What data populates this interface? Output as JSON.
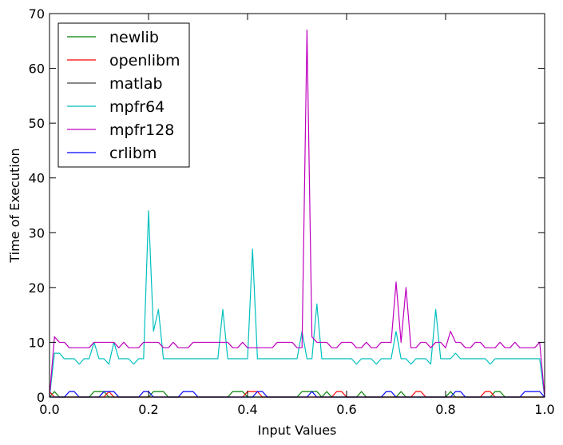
{
  "chart_data": {
    "type": "line",
    "title": "",
    "xlabel": "Input Values",
    "ylabel": "Time of Execution",
    "xlim": [
      0.0,
      1.0
    ],
    "ylim": [
      0,
      70
    ],
    "xticks": [
      0.0,
      0.2,
      0.4,
      0.6,
      0.8,
      1.0
    ],
    "xtick_labels": [
      "0.0",
      "0.2",
      "0.4",
      "0.6",
      "0.8",
      "1.0"
    ],
    "yticks": [
      0,
      10,
      20,
      30,
      40,
      50,
      60,
      70
    ],
    "ytick_labels": [
      "0",
      "10",
      "20",
      "30",
      "40",
      "50",
      "60",
      "70"
    ],
    "grid": false,
    "legend_position": "top-left",
    "x": [
      0.0,
      0.01,
      0.02,
      0.03,
      0.04,
      0.05,
      0.06,
      0.07,
      0.08,
      0.09,
      0.1,
      0.11,
      0.12,
      0.13,
      0.14,
      0.15,
      0.16,
      0.17,
      0.18,
      0.19,
      0.2,
      0.21,
      0.22,
      0.23,
      0.24,
      0.25,
      0.26,
      0.27,
      0.28,
      0.29,
      0.3,
      0.31,
      0.32,
      0.33,
      0.34,
      0.35,
      0.36,
      0.37,
      0.38,
      0.39,
      0.4,
      0.41,
      0.42,
      0.43,
      0.44,
      0.45,
      0.46,
      0.47,
      0.48,
      0.49,
      0.5,
      0.51,
      0.52,
      0.53,
      0.54,
      0.55,
      0.56,
      0.57,
      0.58,
      0.59,
      0.6,
      0.61,
      0.62,
      0.63,
      0.64,
      0.65,
      0.66,
      0.67,
      0.68,
      0.69,
      0.7,
      0.71,
      0.72,
      0.73,
      0.74,
      0.75,
      0.76,
      0.77,
      0.78,
      0.79,
      0.8,
      0.81,
      0.82,
      0.83,
      0.84,
      0.85,
      0.86,
      0.87,
      0.88,
      0.89,
      0.9,
      0.91,
      0.92,
      0.93,
      0.94,
      0.95,
      0.96,
      0.97,
      0.98,
      0.99,
      1.0
    ],
    "series": [
      {
        "name": "newlib",
        "color": "#008000",
        "values": [
          0,
          1,
          0,
          0,
          0,
          0,
          0,
          0,
          0,
          1,
          1,
          1,
          0,
          0,
          0,
          0,
          0,
          0,
          0,
          0,
          0,
          1,
          1,
          1,
          0,
          0,
          0,
          0,
          0,
          0,
          0,
          0,
          0,
          0,
          0,
          0,
          0,
          1,
          1,
          1,
          0,
          0,
          0,
          0,
          0,
          0,
          0,
          0,
          0,
          0,
          0,
          1,
          1,
          1,
          1,
          0,
          1,
          0,
          0,
          0,
          0,
          0,
          0,
          1,
          0,
          0,
          0,
          0,
          0,
          0,
          0,
          1,
          0,
          0,
          0,
          0,
          0,
          0,
          0,
          0,
          0,
          1,
          0,
          0,
          0,
          0,
          0,
          0,
          0,
          0,
          1,
          1,
          0,
          0,
          0,
          0,
          0,
          0,
          0,
          0,
          0
        ]
      },
      {
        "name": "openlibm",
        "color": "#ff0000",
        "values": [
          1,
          0,
          0,
          0,
          0,
          0,
          0,
          0,
          0,
          0,
          0,
          0,
          1,
          0,
          0,
          0,
          0,
          0,
          0,
          0,
          0,
          0,
          0,
          0,
          0,
          0,
          0,
          0,
          0,
          0,
          0,
          0,
          0,
          0,
          0,
          0,
          0,
          0,
          0,
          0,
          1,
          1,
          1,
          0,
          0,
          0,
          0,
          0,
          0,
          0,
          0,
          0,
          0,
          0,
          0,
          0,
          0,
          0,
          1,
          1,
          0,
          0,
          0,
          0,
          0,
          0,
          0,
          0,
          0,
          0,
          0,
          0,
          0,
          0,
          1,
          1,
          0,
          0,
          0,
          0,
          0,
          0,
          0,
          0,
          0,
          0,
          0,
          0,
          1,
          1,
          0,
          0,
          0,
          0,
          0,
          0,
          0,
          0,
          0,
          0,
          0
        ]
      },
      {
        "name": "matlab",
        "color": "#404040",
        "values": [
          0,
          0,
          0,
          0,
          0,
          0,
          0,
          0,
          0,
          0,
          0,
          0,
          0,
          0,
          0,
          0,
          0,
          0,
          0,
          0,
          0,
          0,
          0,
          0,
          0,
          0,
          0,
          0,
          0,
          0,
          0,
          0,
          0,
          0,
          0,
          0,
          0,
          0,
          0,
          0,
          0,
          0,
          0,
          0,
          0,
          0,
          0,
          0,
          0,
          0,
          0,
          0,
          0,
          0,
          0,
          0,
          0,
          0,
          0,
          0,
          0,
          0,
          0,
          0,
          0,
          0,
          0,
          0,
          0,
          0,
          0,
          0,
          0,
          0,
          0,
          0,
          0,
          0,
          0,
          0,
          0,
          0,
          0,
          0,
          0,
          0,
          0,
          0,
          0,
          0,
          0,
          0,
          0,
          0,
          0,
          0,
          0,
          0,
          0,
          0,
          0
        ]
      },
      {
        "name": "mpfr64",
        "color": "#00bfbf",
        "values": [
          0,
          8,
          8,
          7,
          7,
          7,
          6,
          7,
          7,
          10,
          7,
          7,
          6,
          10,
          7,
          7,
          7,
          6,
          7,
          7,
          34,
          12,
          16,
          7,
          7,
          7,
          7,
          7,
          7,
          7,
          7,
          7,
          7,
          7,
          7,
          16,
          7,
          7,
          7,
          7,
          7,
          27,
          7,
          7,
          7,
          7,
          7,
          7,
          7,
          7,
          7,
          12,
          7,
          7,
          17,
          7,
          7,
          7,
          7,
          7,
          7,
          7,
          6,
          7,
          7,
          7,
          6,
          7,
          7,
          7,
          12,
          7,
          7,
          6,
          7,
          7,
          7,
          6,
          16,
          7,
          7,
          7,
          8,
          7,
          7,
          7,
          7,
          7,
          7,
          6,
          7,
          7,
          7,
          7,
          7,
          7,
          7,
          7,
          7,
          7,
          0
        ]
      },
      {
        "name": "mpfr128",
        "color": "#bf00bf",
        "values": [
          0,
          11,
          10,
          10,
          9,
          9,
          9,
          9,
          9,
          10,
          10,
          10,
          10,
          10,
          9,
          10,
          9,
          9,
          9,
          10,
          10,
          10,
          10,
          9,
          9,
          10,
          9,
          9,
          9,
          10,
          10,
          10,
          10,
          10,
          10,
          10,
          10,
          9,
          9,
          10,
          9,
          9,
          9,
          9,
          9,
          9,
          10,
          10,
          10,
          10,
          9,
          9,
          67,
          11,
          10,
          10,
          10,
          9,
          9,
          10,
          10,
          10,
          9,
          9,
          10,
          9,
          9,
          10,
          10,
          10,
          21,
          10,
          20,
          9,
          9,
          10,
          10,
          9,
          10,
          10,
          9,
          12,
          10,
          10,
          9,
          9,
          10,
          10,
          9,
          9,
          9,
          10,
          9,
          9,
          10,
          9,
          9,
          9,
          9,
          10,
          0
        ]
      },
      {
        "name": "crlibm",
        "color": "#0000ff",
        "values": [
          0,
          0,
          0,
          0,
          1,
          1,
          0,
          0,
          0,
          0,
          0,
          1,
          1,
          1,
          0,
          0,
          0,
          0,
          0,
          1,
          1,
          0,
          0,
          0,
          0,
          0,
          0,
          1,
          1,
          1,
          0,
          0,
          0,
          0,
          0,
          0,
          0,
          0,
          0,
          0,
          0,
          0,
          1,
          1,
          0,
          0,
          0,
          0,
          0,
          0,
          0,
          0,
          0,
          1,
          0,
          0,
          0,
          0,
          0,
          0,
          0,
          0,
          0,
          0,
          0,
          0,
          0,
          0,
          1,
          1,
          0,
          0,
          0,
          0,
          0,
          0,
          0,
          0,
          0,
          0,
          0,
          0,
          1,
          1,
          0,
          0,
          0,
          0,
          0,
          0,
          0,
          0,
          0,
          0,
          0,
          0,
          1,
          1,
          1,
          1,
          0
        ]
      }
    ]
  }
}
